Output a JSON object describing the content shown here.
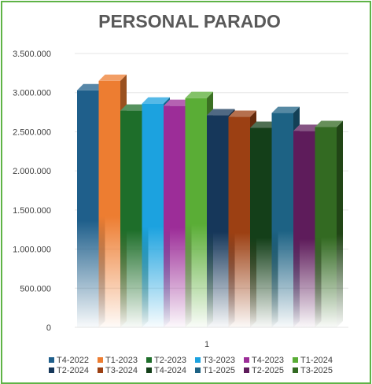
{
  "chart_data": {
    "type": "bar",
    "title": "PERSONAL PARADO",
    "categories": [
      "1"
    ],
    "ylim": [
      0,
      3500000
    ],
    "yticks": [
      0,
      500000,
      1000000,
      1500000,
      2000000,
      2500000,
      3000000,
      3500000
    ],
    "ytick_labels": [
      "0",
      "500.000",
      "1.000.000",
      "1.500.000",
      "2.000.000",
      "2.500.000",
      "3.000.000",
      "3.500.000"
    ],
    "grid": true,
    "legend_position": "bottom",
    "series": [
      {
        "name": "T4-2022",
        "values": [
          3030000
        ],
        "color": "#1f5f8b"
      },
      {
        "name": "T1-2023",
        "values": [
          3150000
        ],
        "color": "#ed7d31"
      },
      {
        "name": "T2-2023",
        "values": [
          2770000
        ],
        "color": "#1e6e2a"
      },
      {
        "name": "T3-2023",
        "values": [
          2860000
        ],
        "color": "#1ca2df"
      },
      {
        "name": "T4-2023",
        "values": [
          2830000
        ],
        "color": "#9c2d98"
      },
      {
        "name": "T1-2024",
        "values": [
          2930000
        ],
        "color": "#5aad36"
      },
      {
        "name": "T2-2024",
        "values": [
          2710000
        ],
        "color": "#16375a"
      },
      {
        "name": "T3-2024",
        "values": [
          2690000
        ],
        "color": "#9c4013"
      },
      {
        "name": "T4-2024",
        "values": [
          2550000
        ],
        "color": "#143f19"
      },
      {
        "name": "T1-2025",
        "values": [
          2740000
        ],
        "color": "#1d6284"
      },
      {
        "name": "T2-2025",
        "values": [
          2510000
        ],
        "color": "#5e1c5b"
      },
      {
        "name": "T3-2025",
        "values": [
          2560000
        ],
        "color": "#336a22"
      }
    ]
  }
}
